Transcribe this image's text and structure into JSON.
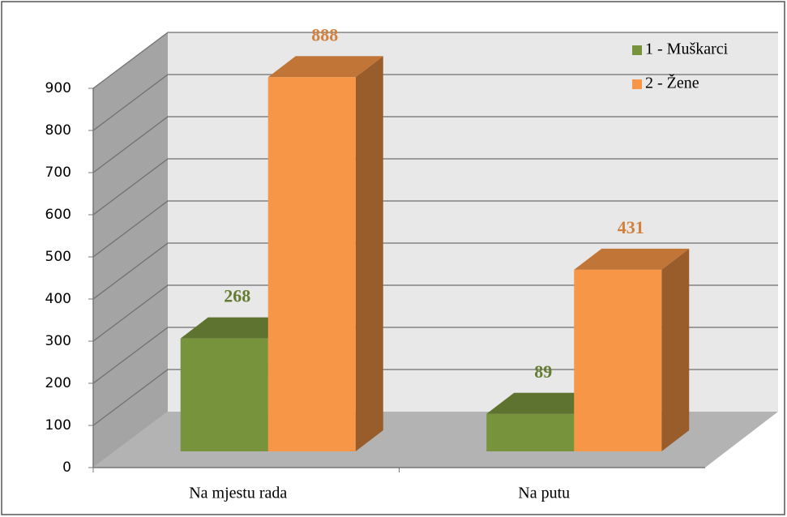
{
  "chart_data": {
    "type": "bar3d",
    "categories": [
      "Na mjestu rada",
      "Na putu"
    ],
    "series": [
      {
        "name": "1 - Muškarci",
        "color": "#77933c",
        "values": [
          268,
          89
        ]
      },
      {
        "name": "2 - Žene",
        "color": "#f79646",
        "values": [
          888,
          431
        ]
      }
    ],
    "ylim": [
      0,
      900
    ],
    "yticks": [
      0,
      100,
      200,
      300,
      400,
      500,
      600,
      700,
      800,
      900
    ],
    "grid": true,
    "legend": "top-right"
  }
}
